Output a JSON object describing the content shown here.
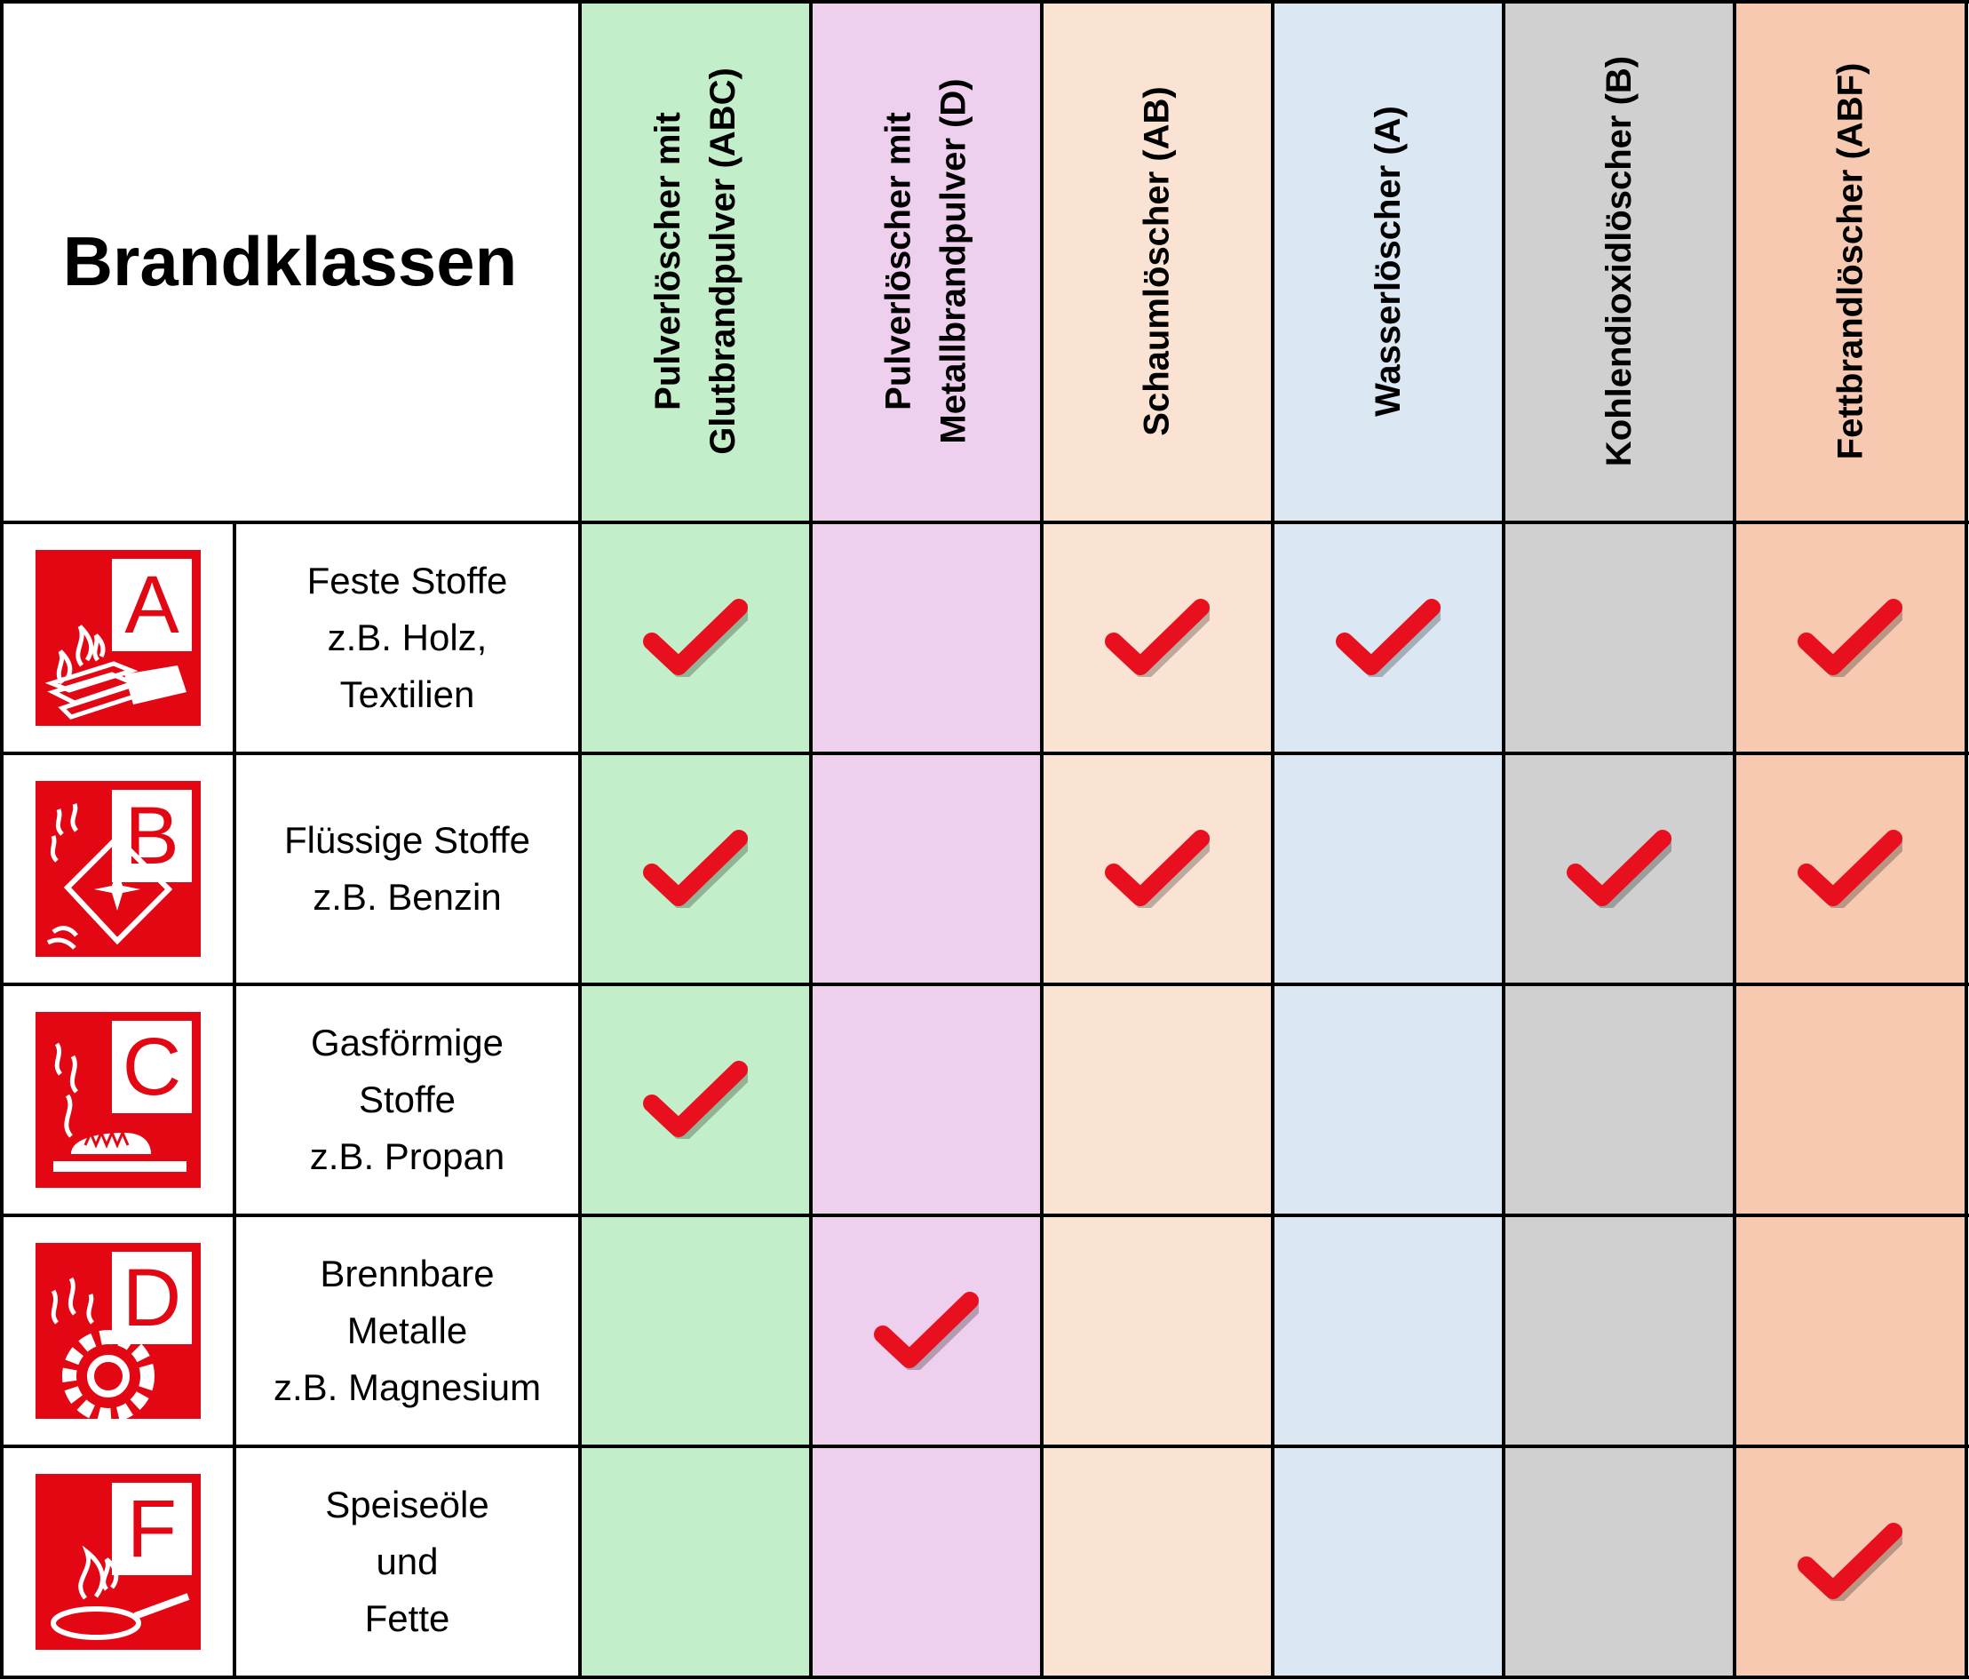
{
  "title": "Brandklassen",
  "colors": {
    "border": "#000000",
    "check_red": "#e8101e",
    "icon_red": "#e30613"
  },
  "extinguishers": [
    {
      "lines": [
        "Pulverlöscher mit",
        "Glutbrandpulver (ABC)"
      ],
      "color": "#c2efc9"
    },
    {
      "lines": [
        "Pulverlöscher mit",
        "Metallbrandpulver (D)"
      ],
      "color": "#efcfee"
    },
    {
      "lines": [
        "Schaumlöscher (AB)"
      ],
      "color": "#fbe3d4"
    },
    {
      "lines": [
        "Wasserlöscher (A)"
      ],
      "color": "#dbe8f4"
    },
    {
      "lines": [
        "Kohlendioxidlöscher (B)"
      ],
      "color": "#d0d0d0"
    },
    {
      "lines": [
        "Fettbrandlöscher (ABF)"
      ],
      "color": "#f7c9b0"
    }
  ],
  "fire_classes": [
    {
      "letter": "A",
      "icon": "wood-fire-icon",
      "lines": [
        "Feste Stoffe",
        "z.B. Holz,",
        "Textilien"
      ],
      "suitable": [
        true,
        false,
        true,
        true,
        false,
        true
      ]
    },
    {
      "letter": "B",
      "icon": "liquid-fire-icon",
      "lines": [
        "Flüssige Stoffe",
        "z.B. Benzin"
      ],
      "suitable": [
        true,
        false,
        true,
        false,
        true,
        true
      ]
    },
    {
      "letter": "C",
      "icon": "gas-fire-icon",
      "lines": [
        "Gasförmige",
        "Stoffe",
        "z.B. Propan"
      ],
      "suitable": [
        true,
        false,
        false,
        false,
        false,
        false
      ]
    },
    {
      "letter": "D",
      "icon": "metal-fire-icon",
      "lines": [
        "Brennbare",
        "Metalle",
        "z.B. Magnesium"
      ],
      "suitable": [
        false,
        true,
        false,
        false,
        false,
        false
      ]
    },
    {
      "letter": "F",
      "icon": "fat-fire-icon",
      "lines": [
        "Speiseöle",
        "und",
        "Fette"
      ],
      "suitable": [
        false,
        false,
        false,
        false,
        false,
        true
      ]
    }
  ]
}
